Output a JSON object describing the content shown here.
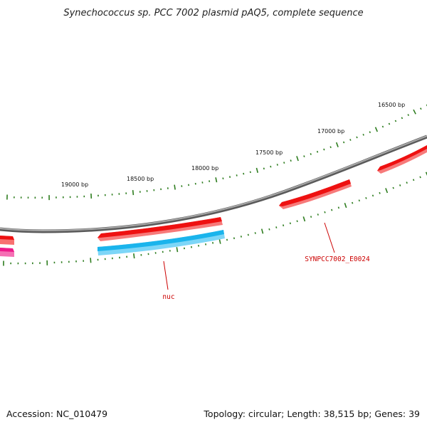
{
  "title": "Synechococcus sp. PCC 7002 plasmid pAQ5, complete sequence",
  "footer": {
    "accession": "Accession: NC_010479",
    "summary": "Topology: circular; Length: 38,515 bp; Genes: 39"
  },
  "colors": {
    "backbone": "#888888",
    "tick": "#2e7d1f",
    "gene_forward": "#ee1111",
    "gene_reverse": "#1ab4ec",
    "gene_other": "#ee1a8a",
    "label": "#cc0000"
  },
  "scale_ticks": [
    {
      "label": "16500 bp"
    },
    {
      "label": "17000 bp"
    },
    {
      "label": "17500 bp"
    },
    {
      "label": "18000 bp"
    },
    {
      "label": "18500 bp"
    },
    {
      "label": "19000 bp"
    }
  ],
  "gene_labels": {
    "synpcc": "SYNPCC7002_E0024",
    "nuc": "nuc"
  }
}
